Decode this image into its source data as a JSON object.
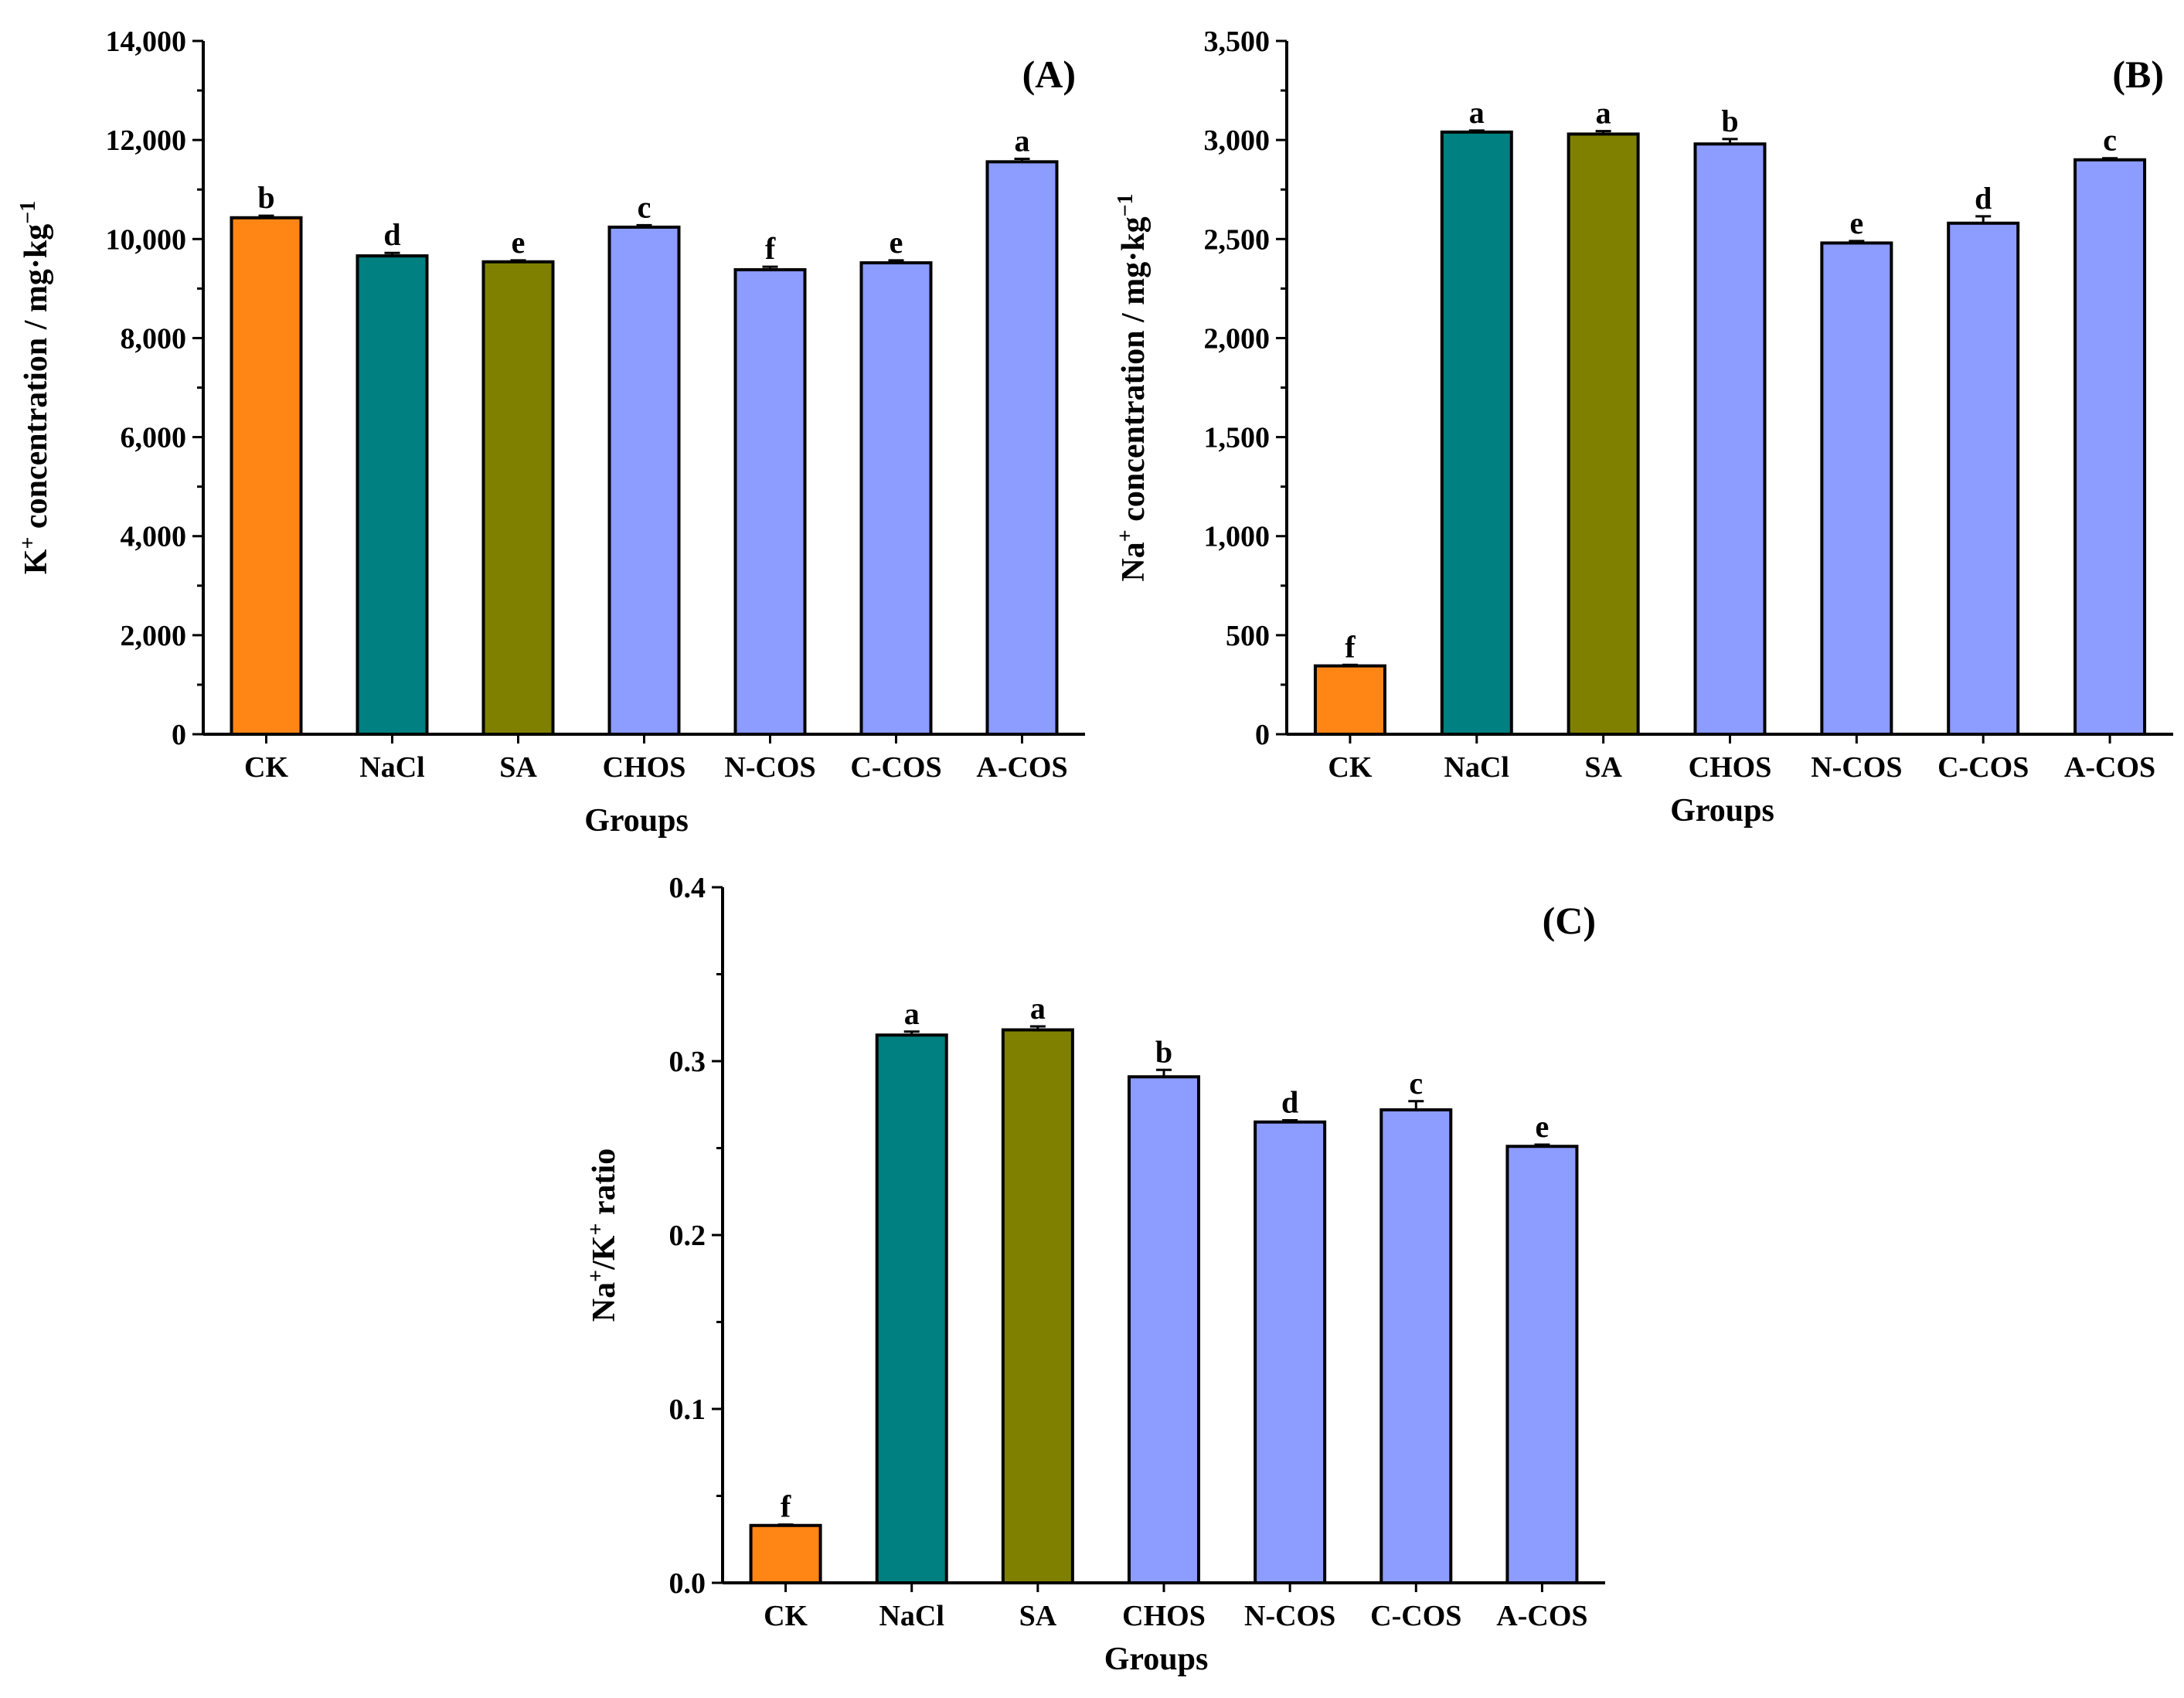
{
  "chart_data": [
    {
      "type": "bar",
      "panel_label": "(A)",
      "categories": [
        "CK",
        "NaCl",
        "SA",
        "CHOS",
        "N-COS",
        "C-COS",
        "A-COS"
      ],
      "values": [
        10430,
        9660,
        9540,
        10240,
        9380,
        9520,
        11560
      ],
      "errors": [
        40,
        60,
        30,
        40,
        60,
        50,
        60
      ],
      "significance": [
        "b",
        "d",
        "e",
        "c",
        "f",
        "e",
        "a"
      ],
      "xlabel": "Groups",
      "ylabel": {
        "prefix": "K",
        "sup": "+",
        "suffix": " concentration / mg·kg",
        "unit_sup": "−1"
      },
      "ylim": [
        0,
        14000
      ],
      "yticks": [
        0,
        2000,
        4000,
        6000,
        8000,
        10000,
        12000,
        14000
      ],
      "ytick_labels": [
        "0",
        "2,000",
        "4,000",
        "6,000",
        "8,000",
        "10,000",
        "12,000",
        "14,000"
      ],
      "grid": false
    },
    {
      "type": "bar",
      "panel_label": "(B)",
      "categories": [
        "CK",
        "NaCl",
        "SA",
        "CHOS",
        "N-COS",
        "C-COS",
        "A-COS"
      ],
      "values": [
        345,
        3040,
        3030,
        2980,
        2480,
        2580,
        2900
      ],
      "errors": [
        5,
        8,
        15,
        25,
        10,
        35,
        8
      ],
      "significance": [
        "f",
        "a",
        "a",
        "b",
        "e",
        "d",
        "c"
      ],
      "xlabel": "Groups",
      "ylabel": {
        "prefix": "Na",
        "sup": "+",
        "suffix": " concentration / mg·kg",
        "unit_sup": "−1"
      },
      "ylim": [
        0,
        3500
      ],
      "yticks": [
        0,
        500,
        1000,
        1500,
        2000,
        2500,
        3000,
        3500
      ],
      "ytick_labels": [
        "0",
        "500",
        "1,000",
        "1,500",
        "2,000",
        "2,500",
        "3,000",
        "3,500"
      ],
      "grid": false
    },
    {
      "type": "bar",
      "panel_label": "(C)",
      "categories": [
        "CK",
        "NaCl",
        "SA",
        "CHOS",
        "N-COS",
        "C-COS",
        "A-COS"
      ],
      "values": [
        0.033,
        0.315,
        0.318,
        0.291,
        0.265,
        0.272,
        0.251
      ],
      "errors": [
        0.0005,
        0.002,
        0.002,
        0.004,
        0.001,
        0.005,
        0.001
      ],
      "significance": [
        "f",
        "a",
        "a",
        "b",
        "d",
        "c",
        "e"
      ],
      "xlabel": "Groups",
      "ylabel": {
        "prefix": "Na",
        "sup": "+",
        "suffix": "/K",
        "sup2": "+",
        "suffix2": " ratio"
      },
      "ylim": [
        0,
        0.4
      ],
      "yticks": [
        0,
        0.1,
        0.2,
        0.3,
        0.4
      ],
      "ytick_labels": [
        "0.0",
        "0.1",
        "0.2",
        "0.3",
        "0.4"
      ],
      "grid": false
    }
  ],
  "colors": {
    "CK": "#FF8515",
    "NaCl": "#008080",
    "SA": "#808000",
    "CHOS": "#8C9CFF",
    "N-COS": "#8C9CFF",
    "C-COS": "#8C9CFF",
    "A-COS": "#8C9CFF"
  }
}
